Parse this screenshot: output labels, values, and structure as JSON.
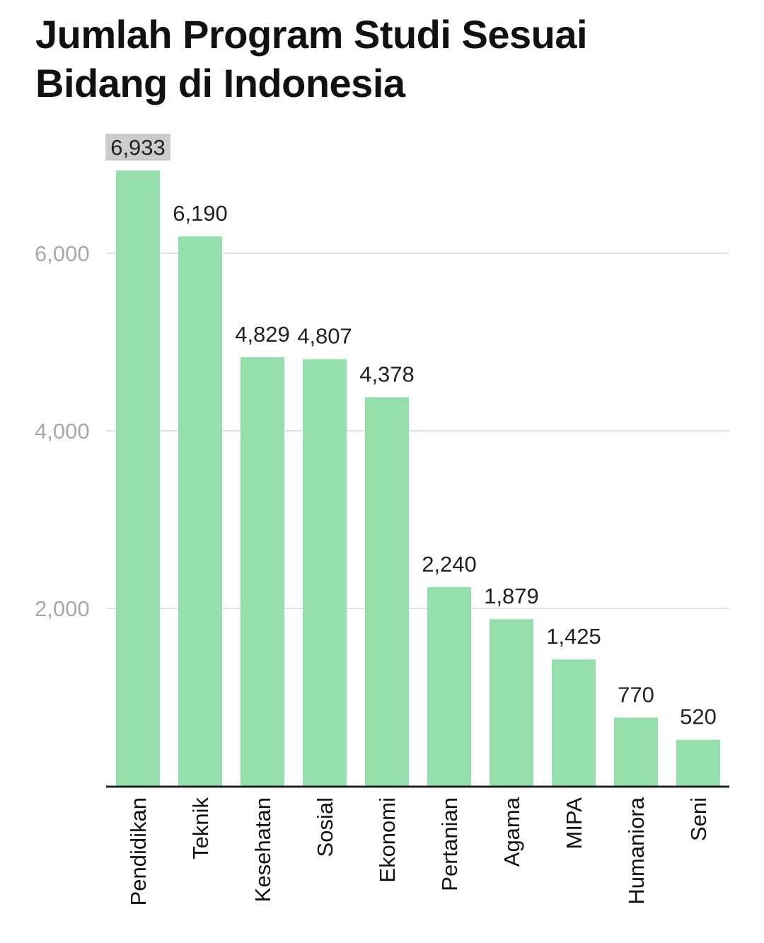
{
  "chart_data": {
    "type": "bar",
    "title": "Jumlah Program Studi Sesuai Bidang di Indonesia",
    "categories": [
      "Pendidikan",
      "Teknik",
      "Kesehatan",
      "Sosial",
      "Ekonomi",
      "Pertanian",
      "Agama",
      "MIPA",
      "Humaniora",
      "Seni"
    ],
    "values": [
      6933,
      6190,
      4829,
      4807,
      4378,
      2240,
      1879,
      1425,
      770,
      520
    ],
    "value_labels": [
      "6,933",
      "6,190",
      "4,829",
      "4,807",
      "4,378",
      "2,240",
      "1,879",
      "1,425",
      "770",
      "520"
    ],
    "highlighted_label_index": 0,
    "yticks": [
      2000,
      4000,
      6000
    ],
    "ytick_labels": [
      "2,000",
      "4,000",
      "6,000"
    ],
    "ylim": [
      0,
      7000
    ],
    "grid": true,
    "legend": "none",
    "xlabel": "",
    "ylabel": "",
    "colors": {
      "bar": "#95dfac",
      "grid": "#e3e3e3",
      "axis": "#222222",
      "tick_text": "#a8a8a8",
      "label_highlight": "#cccccc"
    }
  }
}
